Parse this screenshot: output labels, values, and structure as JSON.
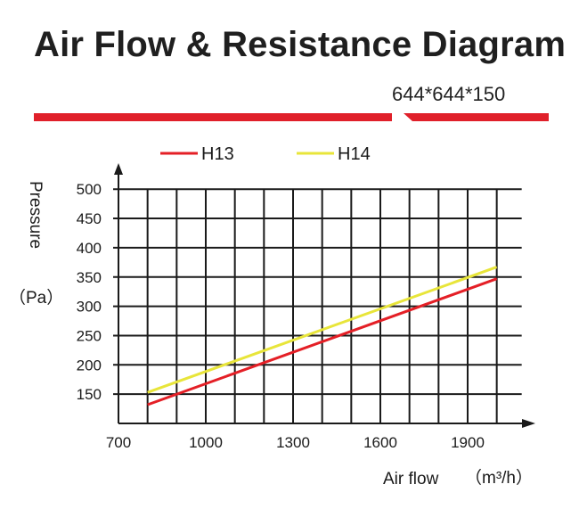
{
  "colors": {
    "accent_red": "#e0202a",
    "h13": "#e41f26",
    "h14": "#e8e53a",
    "grid": "#1a1a1a"
  },
  "chart_data": {
    "type": "line",
    "title": "Air Flow & Resistance Diagram",
    "subtitle": "644*644*150",
    "xlabel": "Air flow",
    "xlabel_unit": "（m³/h）",
    "ylabel": "Pressure",
    "ylabel_unit": "（Pa）",
    "xlim": [
      700,
      2050
    ],
    "ylim": [
      100,
      500
    ],
    "x_ticks": [
      700,
      1000,
      1300,
      1600,
      1900
    ],
    "y_ticks": [
      150,
      200,
      250,
      300,
      350,
      400,
      450,
      500
    ],
    "grid": true,
    "legend_position": "top-left",
    "series": [
      {
        "name": "H13",
        "color": "#e41f26",
        "points": [
          [
            800,
            132
          ],
          [
            2000,
            347
          ]
        ]
      },
      {
        "name": "H14",
        "color": "#e8e53a",
        "points": [
          [
            800,
            153
          ],
          [
            2000,
            367
          ]
        ]
      }
    ]
  }
}
